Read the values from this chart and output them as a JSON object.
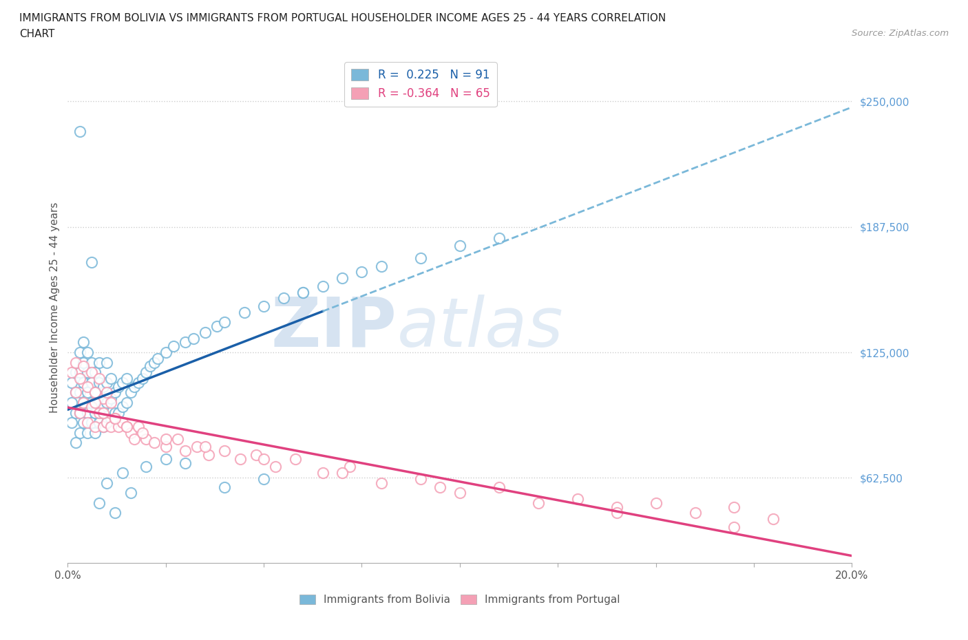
{
  "title_line1": "IMMIGRANTS FROM BOLIVIA VS IMMIGRANTS FROM PORTUGAL HOUSEHOLDER INCOME AGES 25 - 44 YEARS CORRELATION",
  "title_line2": "CHART",
  "source_text": "Source: ZipAtlas.com",
  "ylabel": "Householder Income Ages 25 - 44 years",
  "xlim": [
    0.0,
    0.2
  ],
  "ylim": [
    20000,
    275000
  ],
  "yticks": [
    62500,
    125000,
    187500,
    250000
  ],
  "ytick_labels": [
    "$62,500",
    "$125,000",
    "$187,500",
    "$250,000"
  ],
  "xticks": [
    0.0,
    0.025,
    0.05,
    0.075,
    0.1,
    0.125,
    0.15,
    0.175,
    0.2
  ],
  "xtick_labels": [
    "0.0%",
    "",
    "",
    "",
    "",
    "",
    "",
    "",
    "20.0%"
  ],
  "bolivia_color": "#7ab8d9",
  "portugal_color": "#f4a0b5",
  "bolivia_R": 0.225,
  "bolivia_N": 91,
  "portugal_R": -0.364,
  "portugal_N": 65,
  "trendline_bolivia_color": "#1a5fa8",
  "trendline_portugal_color": "#e0417f",
  "trendline_dashed_color": "#7ab8d9",
  "bolivia_scatter_x": [
    0.001,
    0.001,
    0.001,
    0.002,
    0.002,
    0.002,
    0.002,
    0.003,
    0.003,
    0.003,
    0.003,
    0.003,
    0.004,
    0.004,
    0.004,
    0.004,
    0.004,
    0.005,
    0.005,
    0.005,
    0.005,
    0.005,
    0.006,
    0.006,
    0.006,
    0.006,
    0.007,
    0.007,
    0.007,
    0.007,
    0.008,
    0.008,
    0.008,
    0.008,
    0.009,
    0.009,
    0.009,
    0.01,
    0.01,
    0.01,
    0.01,
    0.011,
    0.011,
    0.011,
    0.012,
    0.012,
    0.013,
    0.013,
    0.014,
    0.014,
    0.015,
    0.015,
    0.016,
    0.017,
    0.018,
    0.019,
    0.02,
    0.021,
    0.022,
    0.023,
    0.025,
    0.027,
    0.03,
    0.032,
    0.035,
    0.038,
    0.04,
    0.045,
    0.05,
    0.055,
    0.06,
    0.065,
    0.07,
    0.075,
    0.08,
    0.09,
    0.1,
    0.11,
    0.003,
    0.006,
    0.008,
    0.01,
    0.012,
    0.014,
    0.016,
    0.02,
    0.025,
    0.03,
    0.04,
    0.05,
    0.06
  ],
  "bolivia_scatter_y": [
    90000,
    100000,
    110000,
    80000,
    95000,
    105000,
    115000,
    85000,
    95000,
    105000,
    115000,
    125000,
    90000,
    100000,
    110000,
    120000,
    130000,
    85000,
    95000,
    105000,
    115000,
    125000,
    90000,
    100000,
    110000,
    120000,
    85000,
    95000,
    105000,
    115000,
    90000,
    100000,
    110000,
    120000,
    88000,
    98000,
    108000,
    90000,
    100000,
    110000,
    120000,
    92000,
    102000,
    112000,
    95000,
    105000,
    95000,
    108000,
    98000,
    110000,
    100000,
    112000,
    105000,
    108000,
    110000,
    112000,
    115000,
    118000,
    120000,
    122000,
    125000,
    128000,
    130000,
    132000,
    135000,
    138000,
    140000,
    145000,
    148000,
    152000,
    155000,
    158000,
    162000,
    165000,
    168000,
    172000,
    178000,
    182000,
    235000,
    170000,
    50000,
    60000,
    45000,
    65000,
    55000,
    68000,
    72000,
    70000,
    58000,
    62000,
    155000
  ],
  "portugal_scatter_x": [
    0.001,
    0.002,
    0.002,
    0.003,
    0.003,
    0.004,
    0.004,
    0.005,
    0.005,
    0.006,
    0.006,
    0.007,
    0.007,
    0.008,
    0.008,
    0.009,
    0.009,
    0.01,
    0.01,
    0.011,
    0.011,
    0.012,
    0.013,
    0.014,
    0.015,
    0.016,
    0.017,
    0.018,
    0.02,
    0.022,
    0.025,
    0.028,
    0.03,
    0.033,
    0.036,
    0.04,
    0.044,
    0.048,
    0.053,
    0.058,
    0.065,
    0.072,
    0.08,
    0.09,
    0.1,
    0.11,
    0.12,
    0.13,
    0.14,
    0.15,
    0.16,
    0.17,
    0.18,
    0.007,
    0.009,
    0.012,
    0.015,
    0.019,
    0.025,
    0.035,
    0.05,
    0.07,
    0.095,
    0.14,
    0.17
  ],
  "portugal_scatter_y": [
    115000,
    105000,
    120000,
    95000,
    112000,
    100000,
    118000,
    90000,
    108000,
    98000,
    115000,
    88000,
    105000,
    95000,
    112000,
    88000,
    102000,
    90000,
    105000,
    88000,
    100000,
    92000,
    88000,
    90000,
    88000,
    85000,
    82000,
    88000,
    82000,
    80000,
    78000,
    82000,
    76000,
    78000,
    74000,
    76000,
    72000,
    74000,
    68000,
    72000,
    65000,
    68000,
    60000,
    62000,
    55000,
    58000,
    50000,
    52000,
    48000,
    50000,
    45000,
    48000,
    42000,
    100000,
    95000,
    92000,
    88000,
    85000,
    82000,
    78000,
    72000,
    65000,
    58000,
    45000,
    38000
  ],
  "watermark_text_zip": "ZIP",
  "watermark_text_atlas": "atlas",
  "background_color": "#ffffff",
  "grid_color": "#cccccc"
}
